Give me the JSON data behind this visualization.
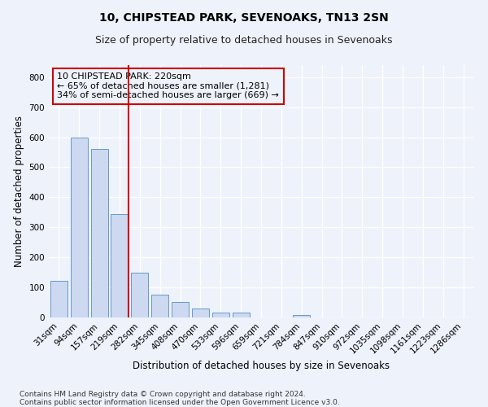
{
  "title1": "10, CHIPSTEAD PARK, SEVENOAKS, TN13 2SN",
  "title2": "Size of property relative to detached houses in Sevenoaks",
  "xlabel": "Distribution of detached houses by size in Sevenoaks",
  "ylabel": "Number of detached properties",
  "categories": [
    "31sqm",
    "94sqm",
    "157sqm",
    "219sqm",
    "282sqm",
    "345sqm",
    "408sqm",
    "470sqm",
    "533sqm",
    "596sqm",
    "659sqm",
    "721sqm",
    "784sqm",
    "847sqm",
    "910sqm",
    "972sqm",
    "1035sqm",
    "1098sqm",
    "1161sqm",
    "1223sqm",
    "1286sqm"
  ],
  "values": [
    122,
    600,
    560,
    345,
    148,
    75,
    52,
    30,
    17,
    15,
    0,
    0,
    8,
    0,
    0,
    0,
    0,
    0,
    0,
    0,
    0
  ],
  "bar_color": "#ccd9f0",
  "bar_edge_color": "#6699cc",
  "vline_color": "#cc0000",
  "annotation_text": "10 CHIPSTEAD PARK: 220sqm\n← 65% of detached houses are smaller (1,281)\n34% of semi-detached houses are larger (669) →",
  "annotation_box_color": "#cc0000",
  "ylim": [
    0,
    840
  ],
  "yticks": [
    0,
    100,
    200,
    300,
    400,
    500,
    600,
    700,
    800
  ],
  "footer": "Contains HM Land Registry data © Crown copyright and database right 2024.\nContains public sector information licensed under the Open Government Licence v3.0.",
  "bg_color": "#eef2fb",
  "grid_color": "#ffffff",
  "title1_fontsize": 10,
  "title2_fontsize": 9,
  "axis_label_fontsize": 8.5,
  "tick_fontsize": 7.5,
  "footer_fontsize": 6.5,
  "annotation_fontsize": 8
}
